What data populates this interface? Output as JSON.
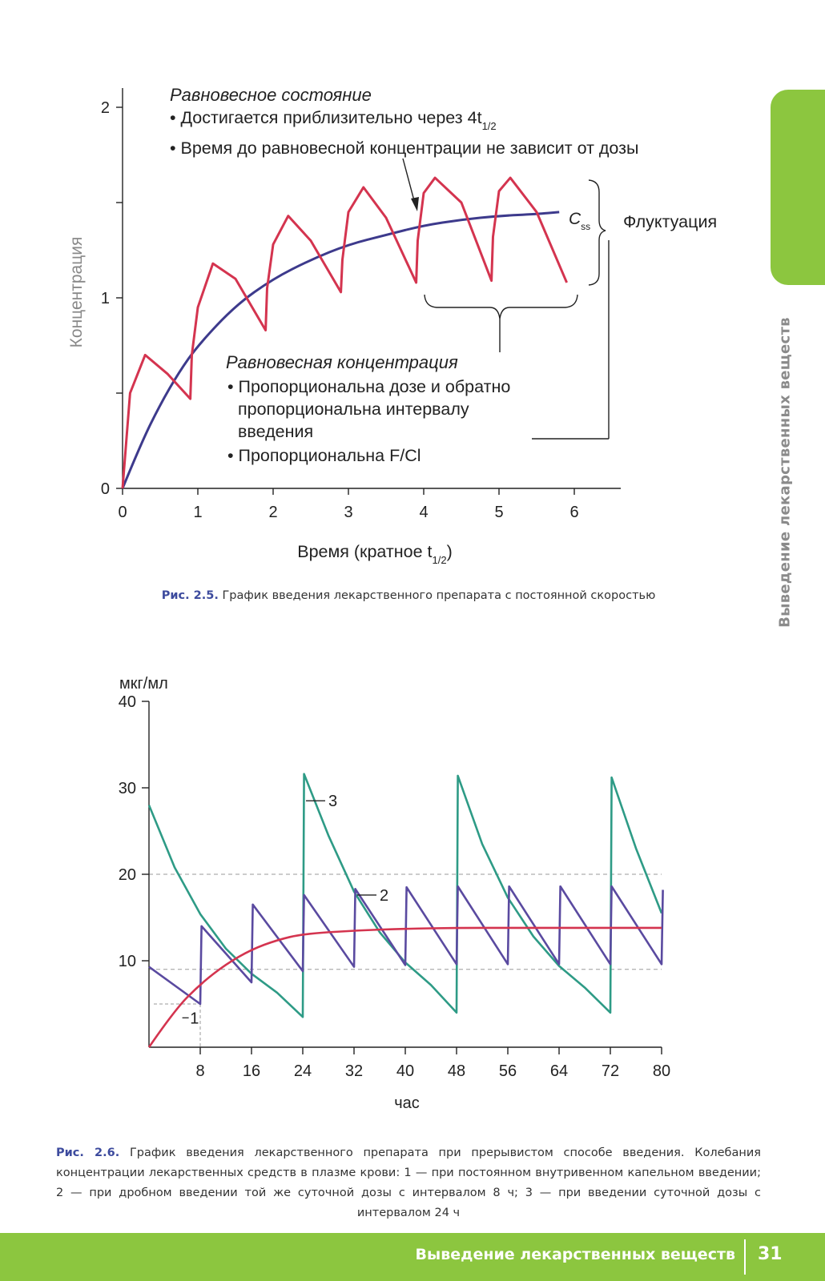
{
  "page": {
    "side_title": "Выведение лекарственных веществ",
    "footer_title": "Выведение лекарственных веществ",
    "page_number": "31",
    "colors": {
      "accent_green": "#8cc63f",
      "caption_blue": "#3d4b9e"
    }
  },
  "figure1": {
    "caption_label": "Рис. 2.5.",
    "caption_text": "График введения лекарственного препарата с постоянной скоростью",
    "annotations": {
      "steady_state_title": "Равновесное состояние",
      "steady_state_bullet1": "• Достигается приблизительно через 4t",
      "steady_state_bullet1_sub": "1/2",
      "steady_state_bullet2": "• Время до равновесной концентрации не зависит от дозы",
      "css_label": "C",
      "css_sub": "ss",
      "fluctuation": "Флуктуация",
      "conc_title": "Равновесная концентрация",
      "conc_bullet1_line1": "• Пропорциональна дозе и обратно",
      "conc_bullet1_line2": "пропорциональна интервалу",
      "conc_bullet1_line3": "введения",
      "conc_bullet2": "• Пропорциональна F/Cl"
    }
  },
  "figure2": {
    "caption_label": "Рис. 2.6.",
    "caption_text": "График введения лекарственного препарата при прерывистом способе введения. Колебания концентрации лекарственных средств в плазме крови: 1 — при постоянном внутривенном капельном введении; 2 — при дробном введении той же суточной дозы с интервалом 8 ч; 3 — при введении суточной дозы с интервалом 24 ч"
  },
  "chart_data": [
    {
      "type": "line",
      "xlabel": "Время (кратное t",
      "xlabel_sub": "1/2",
      "xlabel_end": ")",
      "ylabel": "Концентрация",
      "xlim": [
        0,
        6.5
      ],
      "ylim": [
        0,
        2.2
      ],
      "x_ticks": [
        0,
        1,
        2,
        3,
        4,
        5,
        6
      ],
      "y_ticks": [
        0,
        0.5,
        1,
        1.5,
        2
      ],
      "y_tick_labels": [
        "0",
        "",
        "1",
        "",
        "2"
      ],
      "series": [
        {
          "color": "#3d3a8c",
          "x": [
            0,
            0.25,
            0.5,
            0.75,
            1,
            1.5,
            2,
            2.5,
            3,
            3.5,
            4,
            4.5,
            5,
            5.5,
            5.8
          ],
          "y": [
            0,
            0.24,
            0.44,
            0.61,
            0.75,
            0.96,
            1.1,
            1.2,
            1.28,
            1.33,
            1.38,
            1.41,
            1.43,
            1.44,
            1.45
          ]
        },
        {
          "color": "#d4344f",
          "x": [
            0,
            0.1,
            0.3,
            0.6,
            0.9,
            0.92,
            1.0,
            1.2,
            1.5,
            1.9,
            1.92,
            2.0,
            2.2,
            2.5,
            2.9,
            2.92,
            3.0,
            3.2,
            3.5,
            3.9,
            3.92,
            4.0,
            4.15,
            4.5,
            4.9,
            4.92,
            5.0,
            5.15,
            5.5,
            5.9
          ],
          "y": [
            0,
            0.5,
            0.7,
            0.6,
            0.47,
            0.7,
            0.95,
            1.18,
            1.1,
            0.83,
            1.05,
            1.28,
            1.43,
            1.3,
            1.03,
            1.2,
            1.45,
            1.58,
            1.42,
            1.08,
            1.3,
            1.55,
            1.63,
            1.5,
            1.09,
            1.32,
            1.56,
            1.63,
            1.45,
            1.08
          ]
        }
      ]
    },
    {
      "type": "line",
      "xlabel": "час",
      "ylabel": "мкг/мл",
      "xlim": [
        0,
        80
      ],
      "ylim": [
        0,
        40
      ],
      "x_ticks": [
        8,
        16,
        24,
        32,
        40,
        48,
        56,
        64,
        72,
        80
      ],
      "y_ticks": [
        10,
        20,
        30,
        40
      ],
      "reference_lines": [
        20,
        9
      ],
      "series": [
        {
          "name": "1",
          "color": "#d4344f",
          "x": [
            0,
            4,
            8,
            12,
            16,
            20,
            24,
            32,
            40,
            48,
            56,
            64,
            72,
            80
          ],
          "y": [
            0,
            4.3,
            7.3,
            9.6,
            11.3,
            12.4,
            13.1,
            13.5,
            13.7,
            13.8,
            13.8,
            13.8,
            13.8,
            13.8
          ]
        },
        {
          "name": "2",
          "color": "#5a4aa0",
          "x": [
            0,
            8,
            8.2,
            16,
            16.2,
            24,
            24.2,
            32,
            32.2,
            40,
            40.2,
            48,
            48.2,
            56,
            56.2,
            64,
            64.2,
            72,
            72.2,
            80,
            80.2
          ],
          "y": [
            9.3,
            5,
            14,
            7.5,
            16.5,
            8.8,
            17.6,
            9.3,
            18.3,
            9.5,
            18.5,
            9.6,
            18.6,
            9.6,
            18.6,
            9.6,
            18.6,
            9.6,
            18.6,
            9.6,
            18.2
          ]
        },
        {
          "name": "3",
          "color": "#2e9b86",
          "x": [
            0,
            4,
            8,
            12,
            16,
            20,
            24,
            24.2,
            28,
            32,
            36,
            40,
            44,
            48,
            48.2,
            52,
            56,
            60,
            64,
            68,
            72,
            72.2,
            76,
            80
          ],
          "y": [
            28,
            20.8,
            15.4,
            11.4,
            8.5,
            6.3,
            3.5,
            31.6,
            24.5,
            18,
            13.3,
            9.8,
            7.2,
            4,
            31.4,
            23.5,
            17.3,
            12.8,
            9.4,
            6.9,
            4,
            31.2,
            23,
            15.5
          ]
        }
      ]
    }
  ]
}
